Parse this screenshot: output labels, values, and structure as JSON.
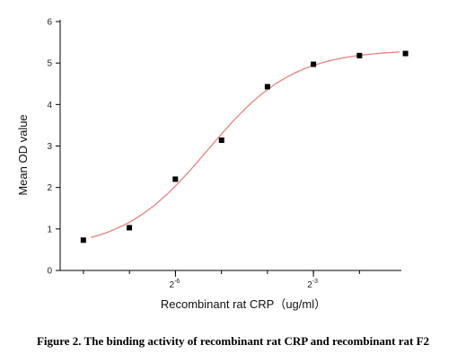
{
  "chart_data": {
    "type": "scatter",
    "xlabel": "Recombinant rat CRP（ug/ml）",
    "ylabel": "Mean OD value",
    "x_scale": "log2",
    "x_tick_labels": [
      {
        "base": "2",
        "exp": "-6",
        "value": 0.015625
      },
      {
        "base": "2",
        "exp": "-3",
        "value": 0.125
      }
    ],
    "xlim": [
      0.00275,
      0.47
    ],
    "ylim": [
      0,
      6
    ],
    "y_ticks": [
      "0",
      "1",
      "2",
      "3",
      "4",
      "5",
      "6"
    ],
    "points": {
      "x": [
        0.0039,
        0.0078,
        0.0156,
        0.0313,
        0.0625,
        0.125,
        0.25,
        0.5
      ],
      "y": [
        0.73,
        1.03,
        2.2,
        3.14,
        4.43,
        4.97,
        5.18,
        5.23
      ]
    },
    "fit_curve": {
      "type": "sigmoid",
      "bottom": 0.5,
      "top": 5.32,
      "ec50": 0.0255,
      "hill": 1.55
    },
    "colors": {
      "points": "#000000",
      "fit_curve": "#e8807f",
      "axes": "#000000"
    },
    "grid": false,
    "legend": "none"
  },
  "caption": "Figure 2. The binding activity of recombinant rat CRP and recombinant rat F2"
}
